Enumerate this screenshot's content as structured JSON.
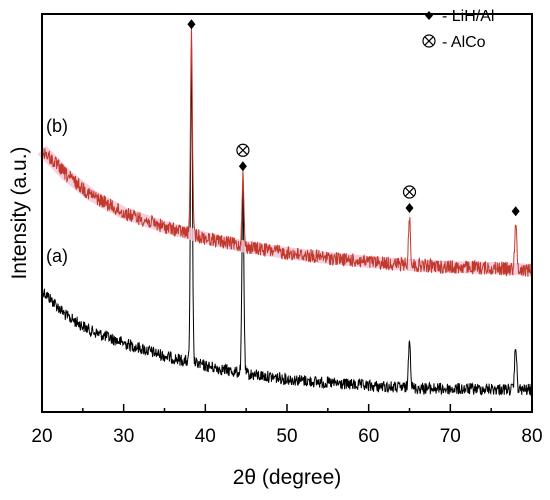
{
  "chart_data": {
    "type": "line",
    "xlabel": "2θ (degree)",
    "ylabel": "Intensity (a.u.)",
    "xlim": [
      20,
      80
    ],
    "xticks": [
      "20",
      "30",
      "40",
      "50",
      "60",
      "70",
      "80"
    ],
    "yticks": [],
    "grid": false,
    "legend_position": "top-right",
    "legend": [
      {
        "symbol": "diamond",
        "label": "- LiH/Al"
      },
      {
        "symbol": "circled-cross",
        "label": "- AlCo"
      }
    ],
    "series": [
      {
        "name": "(a)",
        "color": "#000000",
        "baseline": [
          [
            20,
            290
          ],
          [
            23,
            316
          ],
          [
            26,
            331
          ],
          [
            30,
            343
          ],
          [
            35,
            356
          ],
          [
            40,
            366
          ],
          [
            45,
            374
          ],
          [
            50,
            379
          ],
          [
            55,
            383
          ],
          [
            60,
            386
          ],
          [
            65,
            388
          ],
          [
            70,
            389
          ],
          [
            75,
            389
          ],
          [
            80,
            390
          ]
        ],
        "peaks": [
          {
            "x": 38.3,
            "height": 300
          },
          {
            "x": 44.6,
            "height": 182
          },
          {
            "x": 65.0,
            "height": 53
          },
          {
            "x": 78.0,
            "height": 45
          }
        ],
        "noise": 12
      },
      {
        "name": "(b)",
        "color": "#c0392b",
        "band_color": "#f6c6d9",
        "baseline": [
          [
            20,
            150
          ],
          [
            23,
            175
          ],
          [
            26,
            195
          ],
          [
            30,
            213
          ],
          [
            35,
            227
          ],
          [
            40,
            238
          ],
          [
            45,
            247
          ],
          [
            50,
            253
          ],
          [
            55,
            258
          ],
          [
            60,
            262
          ],
          [
            65,
            265
          ],
          [
            70,
            267
          ],
          [
            75,
            268
          ],
          [
            80,
            270
          ]
        ],
        "peaks": [
          {
            "x": 38.3,
            "height": 200
          },
          {
            "x": 44.6,
            "height": 70
          },
          {
            "x": 65.0,
            "height": 47
          },
          {
            "x": 78.0,
            "height": 48
          }
        ],
        "noise": 14
      }
    ],
    "annotations": [
      {
        "x": 38.3,
        "markers": [
          "diamond"
        ]
      },
      {
        "x": 44.6,
        "markers": [
          "circled-cross",
          "diamond"
        ]
      },
      {
        "x": 65.0,
        "markers": [
          "circled-cross",
          "diamond"
        ]
      },
      {
        "x": 78.0,
        "markers": [
          "diamond"
        ]
      }
    ]
  }
}
